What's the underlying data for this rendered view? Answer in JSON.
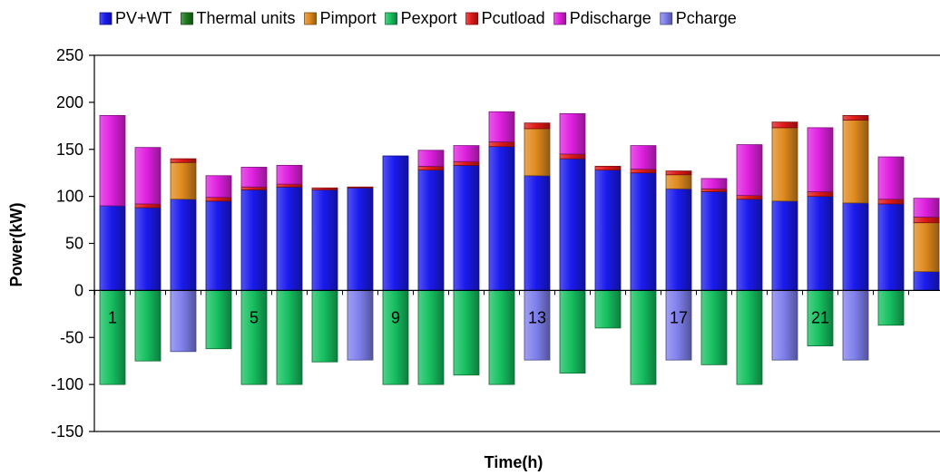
{
  "chart_data": {
    "type": "bar",
    "stacked": true,
    "title": "",
    "xlabel": "Time(h)",
    "ylabel": "Power(kW)",
    "ylim": [
      -150,
      250
    ],
    "yticks": [
      250,
      200,
      150,
      100,
      50,
      0,
      -50,
      -100,
      -150
    ],
    "categories": [
      1,
      2,
      3,
      4,
      5,
      6,
      7,
      8,
      9,
      10,
      11,
      12,
      13,
      14,
      15,
      16,
      17,
      18,
      19,
      20,
      21,
      22,
      23,
      24
    ],
    "category_labels": [
      "1",
      "",
      "",
      "",
      "5",
      "",
      "",
      "",
      "9",
      "",
      "",
      "",
      "13",
      "",
      "",
      "",
      "17",
      "",
      "",
      "",
      "21",
      "",
      "",
      ""
    ],
    "legend_position": "top",
    "series": [
      {
        "name": "PV+WT",
        "color": "#1a1aee",
        "values": [
          90,
          88,
          97,
          95,
          107,
          110,
          107,
          109,
          143,
          128,
          133,
          153,
          122,
          140,
          128,
          125,
          108,
          105,
          97,
          95,
          100,
          93,
          92,
          20
        ]
      },
      {
        "name": "Thermal units",
        "color": "#1f7a1f",
        "values": [
          0,
          0,
          0,
          0,
          0,
          0,
          0,
          0,
          0,
          0,
          0,
          0,
          0,
          0,
          0,
          0,
          0,
          0,
          0,
          0,
          0,
          0,
          0,
          0
        ]
      },
      {
        "name": "Pimport",
        "color": "#e08a1e",
        "values": [
          0,
          0,
          39,
          0,
          0,
          0,
          0,
          0,
          0,
          0,
          0,
          0,
          50,
          0,
          0,
          0,
          15,
          0,
          0,
          78,
          0,
          88,
          0,
          52
        ]
      },
      {
        "name": "Pexport",
        "color": "#16c060",
        "values": [
          -100,
          -75,
          0,
          -62,
          -100,
          -100,
          -76,
          0,
          -100,
          -100,
          -90,
          -100,
          0,
          -88,
          -40,
          -100,
          0,
          -79,
          -100,
          0,
          -59,
          0,
          -37,
          0
        ]
      },
      {
        "name": "Pcutload",
        "color": "#e01818",
        "values": [
          0,
          4,
          4,
          4,
          3,
          3,
          2,
          1,
          0,
          4,
          4,
          5,
          6,
          5,
          4,
          4,
          4,
          3,
          4,
          6,
          5,
          5,
          5,
          6
        ]
      },
      {
        "name": "Pdischarge",
        "color": "#e020e0",
        "values": [
          96,
          60,
          0,
          23,
          21,
          20,
          0,
          0,
          0,
          17,
          17,
          32,
          0,
          43,
          0,
          25,
          0,
          11,
          54,
          0,
          68,
          0,
          45,
          20
        ]
      },
      {
        "name": "Pcharge",
        "color": "#8080ee",
        "values": [
          0,
          0,
          -65,
          0,
          0,
          0,
          0,
          -74,
          0,
          0,
          0,
          0,
          -74,
          0,
          0,
          0,
          -74,
          0,
          0,
          -74,
          0,
          -74,
          0,
          0
        ]
      }
    ]
  }
}
